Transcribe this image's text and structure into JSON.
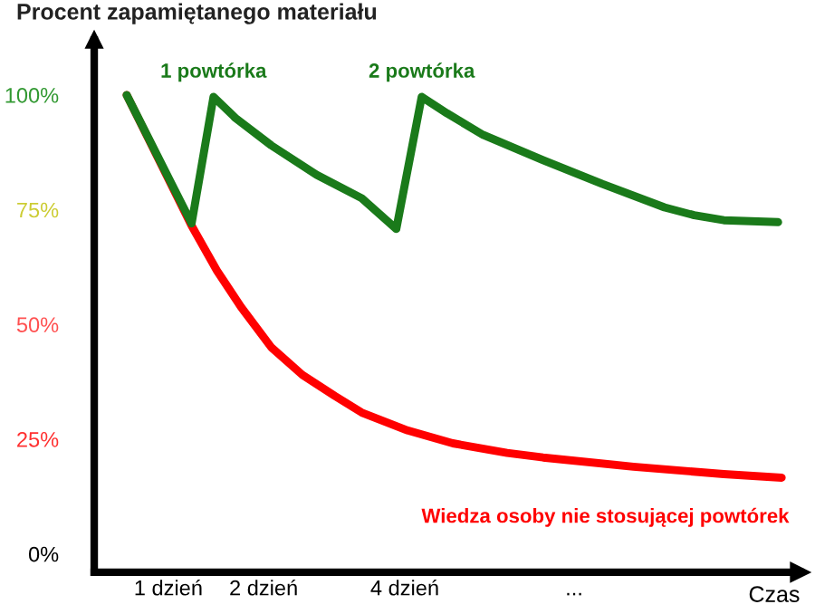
{
  "chart_data": {
    "type": "line",
    "ylabel": "Procent zapamiętanego materiału",
    "xlabel": "Czas",
    "xlim": [
      0,
      10
    ],
    "xticks": [
      {
        "value": 1.05,
        "label": "1 dzień"
      },
      {
        "value": 2.4,
        "label": "2 dzień"
      },
      {
        "value": 4.4,
        "label": "4 dzień"
      },
      {
        "value": 6.8,
        "label": "..."
      }
    ],
    "ylim": [
      -4,
      112
    ],
    "yticks": [
      {
        "value": 0,
        "label": "0%"
      },
      {
        "value": 25,
        "label": "25%"
      },
      {
        "value": 50,
        "label": "50%"
      },
      {
        "value": 75,
        "label": "75%"
      },
      {
        "value": 100,
        "label": "100%"
      }
    ],
    "grid": false,
    "series": [
      {
        "color": "#ff0000",
        "x": [
          0.46,
          1.38,
          1.74,
          2.08,
          2.51,
          2.95,
          3.41,
          3.79,
          4.44,
          5.08,
          5.85,
          6.36,
          7.64,
          8.92,
          9.74
        ],
        "values": [
          100,
          71.5,
          61.7,
          53.8,
          45,
          39,
          34.4,
          30.8,
          26.9,
          24.1,
          22,
          21,
          19,
          17.4,
          16.6
        ]
      },
      {
        "color": "#1a7a1a",
        "x": [
          0.46,
          1.38,
          1.69,
          2.0,
          2.51,
          3.15,
          3.79,
          4.28,
          4.64,
          5.0,
          5.51,
          6.36,
          7.2,
          8.08,
          8.5,
          8.92,
          9.69
        ],
        "values": [
          100,
          72,
          99.6,
          95,
          89,
          82.6,
          77.5,
          70.8,
          99.6,
          96,
          91.3,
          85.8,
          80.6,
          75.5,
          73.8,
          72.7,
          72.3
        ]
      }
    ],
    "annotations": [
      {
        "text": "1 powtórka",
        "x": 1.69,
        "y": 99.6
      },
      {
        "text": "2 powtórka",
        "x": 4.64,
        "y": 99.6
      },
      {
        "text": "Wiedza osoby nie stosującej powtórek",
        "x": 9.74,
        "y": 16.6
      }
    ]
  }
}
